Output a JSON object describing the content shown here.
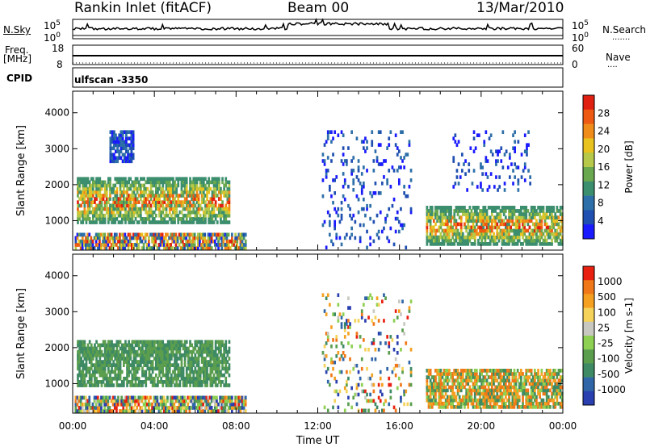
{
  "header": {
    "station": "Rankin Inlet (fitACF)",
    "beam": "Beam 00",
    "date": "13/Mar/2010"
  },
  "strips": {
    "nsky_label": "N.Sky",
    "nsky_top": "10^5",
    "nsky_bottom": "10^0",
    "nsearch_label": "N.Search",
    "nsearch_top": "10^5",
    "nsearch_bottom": "10^0",
    "freq_label": "Freq.",
    "freq_unit": "[MHz]",
    "freq_top": "18",
    "freq_bottom": "8",
    "nave_label": "Nave",
    "nave_top": "60",
    "nave_bottom": "0",
    "cpid_label": "CPID",
    "cpid_value": "ulfscan -3350"
  },
  "chart_data": [
    {
      "type": "heatmap",
      "panel": "power",
      "ylabel": "Slant Range [km]",
      "xlabel": "",
      "ylim": [
        180,
        4600
      ],
      "yticks": [
        1000,
        2000,
        3000,
        4000
      ],
      "xlim": [
        0,
        24
      ],
      "colorbar": {
        "label": "Power [dB]",
        "ticks": [
          "4",
          "8",
          "12",
          "16",
          "20",
          "24",
          "28"
        ],
        "colors": [
          "#1a1aff",
          "#1f4fb0",
          "#2d6fa8",
          "#3c8f6e",
          "#6aa84f",
          "#b7c94a",
          "#e8c21e",
          "#f08c1a",
          "#ee5a12",
          "#e02010"
        ]
      },
      "regions": [
        {
          "t0": 0.2,
          "t1": 7.7,
          "r0": 900,
          "r1": 2200,
          "level": "high"
        },
        {
          "t0": 1.8,
          "t1": 3.0,
          "r0": 2600,
          "r1": 3500,
          "level": "low"
        },
        {
          "t0": 0.1,
          "t1": 8.5,
          "r0": 180,
          "r1": 650,
          "level": "mixed"
        },
        {
          "t0": 12.2,
          "t1": 16.6,
          "r0": 200,
          "r1": 3500,
          "level": "sparse"
        },
        {
          "t0": 17.3,
          "t1": 24.0,
          "r0": 300,
          "r1": 1400,
          "level": "high"
        },
        {
          "t0": 18.6,
          "t1": 22.6,
          "r0": 1800,
          "r1": 3500,
          "level": "sparse"
        }
      ]
    },
    {
      "type": "heatmap",
      "panel": "velocity",
      "ylabel": "Slant Range [km]",
      "xlabel": "Time UT",
      "ylim": [
        180,
        4600
      ],
      "yticks": [
        1000,
        2000,
        3000,
        4000
      ],
      "xlim": [
        0,
        24
      ],
      "colorbar": {
        "label": "Velocity [m s-1]",
        "ticks": [
          "1000",
          "500",
          "100",
          "25",
          "-25",
          "-100",
          "-500",
          "-1000"
        ],
        "colors": [
          "#2a3fb0",
          "#3066a8",
          "#3e8a64",
          "#5a9e4e",
          "#8ed052",
          "#c8c8c0",
          "#f5d25a",
          "#f5a020",
          "#f07818",
          "#e82010"
        ]
      },
      "xticks": [
        "00:00",
        "04:00",
        "08:00",
        "12:00",
        "16:00",
        "20:00",
        "00:00"
      ],
      "regions": [
        {
          "t0": 0.2,
          "t1": 7.7,
          "r0": 900,
          "r1": 2200,
          "level": "green"
        },
        {
          "t0": 0.1,
          "t1": 8.5,
          "r0": 180,
          "r1": 650,
          "level": "mixed"
        },
        {
          "t0": 12.2,
          "t1": 16.6,
          "r0": 200,
          "r1": 3500,
          "level": "scatter"
        },
        {
          "t0": 17.3,
          "t1": 24.0,
          "r0": 300,
          "r1": 1400,
          "level": "orange-green"
        }
      ]
    }
  ]
}
